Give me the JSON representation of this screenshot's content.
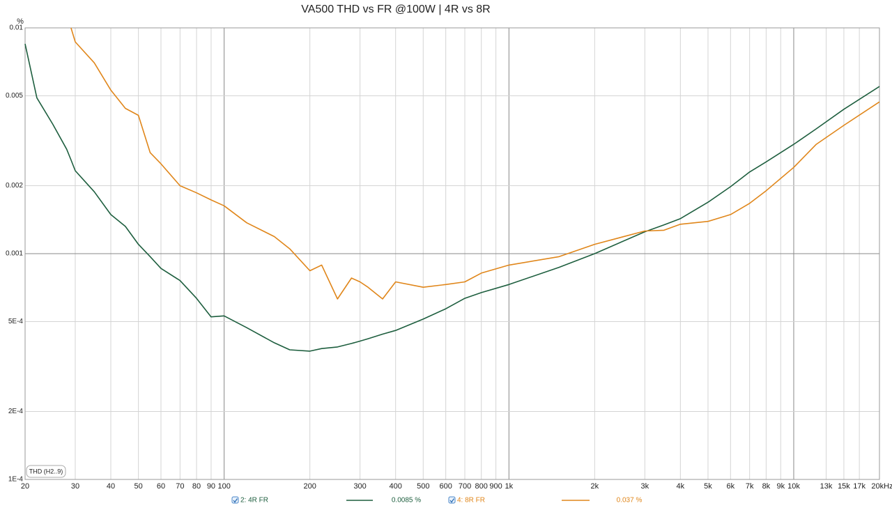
{
  "chart_data": {
    "type": "line",
    "title": "VA500 THD vs FR @100W | 4R vs 8R",
    "ylabel": "%",
    "annotation": "THD (H2..9)",
    "xscale": "log",
    "yscale": "log",
    "grid": true,
    "xlim": [
      20,
      20000
    ],
    "ylim": [
      0.0001,
      0.01
    ],
    "xticks": [
      20,
      30,
      40,
      50,
      60,
      70,
      80,
      90,
      100,
      200,
      300,
      400,
      500,
      600,
      700,
      800,
      900,
      {
        "value": 1000,
        "label": "1k"
      },
      {
        "value": 2000,
        "label": "2k"
      },
      {
        "value": 3000,
        "label": "3k"
      },
      {
        "value": 4000,
        "label": "4k"
      },
      {
        "value": 5000,
        "label": "5k"
      },
      {
        "value": 6000,
        "label": "6k"
      },
      {
        "value": 7000,
        "label": "7k"
      },
      {
        "value": 8000,
        "label": "8k"
      },
      {
        "value": 9000,
        "label": "9k"
      },
      {
        "value": 10000,
        "label": "10k"
      },
      {
        "value": 13000,
        "label": "13k"
      },
      {
        "value": 15000,
        "label": "15k"
      },
      {
        "value": 17000,
        "label": "17k"
      },
      {
        "value": 20000,
        "label": "20kHz"
      }
    ],
    "yticks": [
      0.01,
      0.005,
      0.002,
      0.001,
      {
        "value": 0.0005,
        "label": "5E-4"
      },
      {
        "value": 0.0002,
        "label": "2E-4"
      },
      {
        "value": 0.0001,
        "label": "1E-4"
      }
    ],
    "x": [
      20,
      22,
      25,
      28,
      29,
      30,
      35,
      40,
      45,
      50,
      55,
      60,
      70,
      80,
      90,
      100,
      120,
      150,
      170,
      200,
      220,
      250,
      280,
      300,
      320,
      360,
      400,
      500,
      600,
      700,
      800,
      1000,
      1500,
      2000,
      3000,
      3500,
      4000,
      5000,
      6000,
      7000,
      8000,
      10000,
      12000,
      15000,
      20000
    ],
    "series": [
      {
        "name": "2: 4R FR",
        "legend_value": "0.0085 %",
        "color": "#1d5e3e",
        "values": [
          0.0085,
          0.0049,
          0.00375,
          0.0029,
          0.0026,
          0.00233,
          0.00188,
          0.00149,
          0.00132,
          0.0011,
          0.00097,
          0.00086,
          0.00076,
          0.000634,
          0.000525,
          0.00053,
          0.00047,
          0.000403,
          0.000375,
          0.00037,
          0.00038,
          0.000386,
          0.0004,
          0.00041,
          0.00042,
          0.00044,
          0.000457,
          0.000513,
          0.00057,
          0.000634,
          0.000672,
          0.00073,
          0.00087,
          0.001,
          0.00125,
          0.00134,
          0.00143,
          0.00169,
          0.00198,
          0.0023,
          0.00255,
          0.00305,
          0.00357,
          0.00436,
          0.0055
        ]
      },
      {
        "name": "4: 8R FR",
        "legend_value": "0.037 %",
        "color": "#e0861a",
        "values": [
          null,
          null,
          null,
          null,
          0.01,
          0.00867,
          0.007,
          0.0053,
          0.0044,
          0.0041,
          0.0028,
          0.0025,
          0.002,
          0.00186,
          0.00173,
          0.00163,
          0.00137,
          0.00119,
          0.00105,
          0.00084,
          0.00089,
          0.00063,
          0.00078,
          0.00075,
          0.00071,
          0.00063,
          0.00075,
          0.00071,
          0.00073,
          0.00075,
          0.00082,
          0.00089,
          0.00097,
          0.0011,
          0.00126,
          0.00127,
          0.00135,
          0.00139,
          0.00149,
          0.00167,
          0.0019,
          0.00241,
          0.00305,
          0.0037,
          0.0047
        ]
      }
    ]
  }
}
